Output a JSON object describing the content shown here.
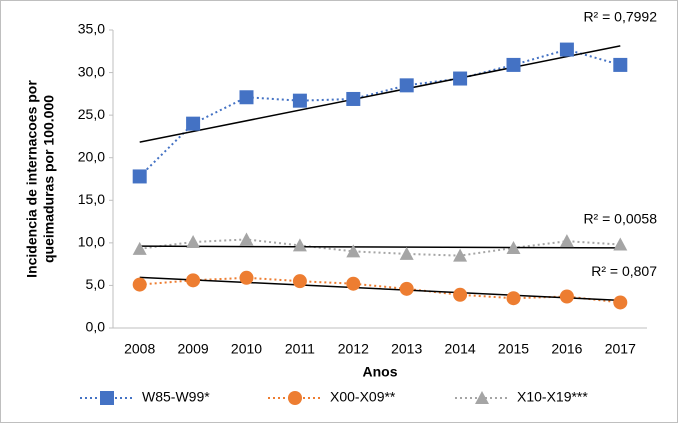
{
  "chart_data": {
    "type": "line",
    "ylabel": [
      "Incidencia de internacoes por",
      "queimaduras por 100.000"
    ],
    "xlabel": "Anos",
    "categories": [
      "2008",
      "2009",
      "2010",
      "2011",
      "2012",
      "2013",
      "2014",
      "2015",
      "2016",
      "2017"
    ],
    "series": [
      {
        "name": "W85-W99*",
        "color": "#4472c4",
        "marker": "square",
        "values": [
          17.8,
          24.0,
          27.1,
          26.7,
          26.9,
          28.5,
          29.3,
          30.9,
          32.7,
          30.9
        ],
        "trend_label": "R² = 0,7992"
      },
      {
        "name": "X00-X09**",
        "color": "#ed7d31",
        "marker": "circle",
        "values": [
          5.1,
          5.6,
          5.9,
          5.5,
          5.2,
          4.6,
          3.9,
          3.5,
          3.7,
          3.0
        ],
        "trend_label": "R² = 0,807"
      },
      {
        "name": "X10-X19***",
        "color": "#a5a5a5",
        "marker": "triangle",
        "values": [
          9.3,
          10.1,
          10.4,
          9.7,
          9.0,
          8.7,
          8.5,
          9.4,
          10.2,
          9.8
        ],
        "trend_label": "R² = 0,0058"
      }
    ],
    "ylim": [
      0,
      35
    ],
    "yticks": [
      {
        "value": 0,
        "label": "0,0"
      },
      {
        "value": 5,
        "label": "5,0"
      },
      {
        "value": 10,
        "label": "10,0"
      },
      {
        "value": 15,
        "label": "15,0"
      },
      {
        "value": 20,
        "label": "20,0"
      },
      {
        "value": 25,
        "label": "25,0"
      },
      {
        "value": 30,
        "label": "30,0"
      },
      {
        "value": 35,
        "label": "35,0"
      }
    ],
    "legend": "bottom",
    "trendline": true
  }
}
